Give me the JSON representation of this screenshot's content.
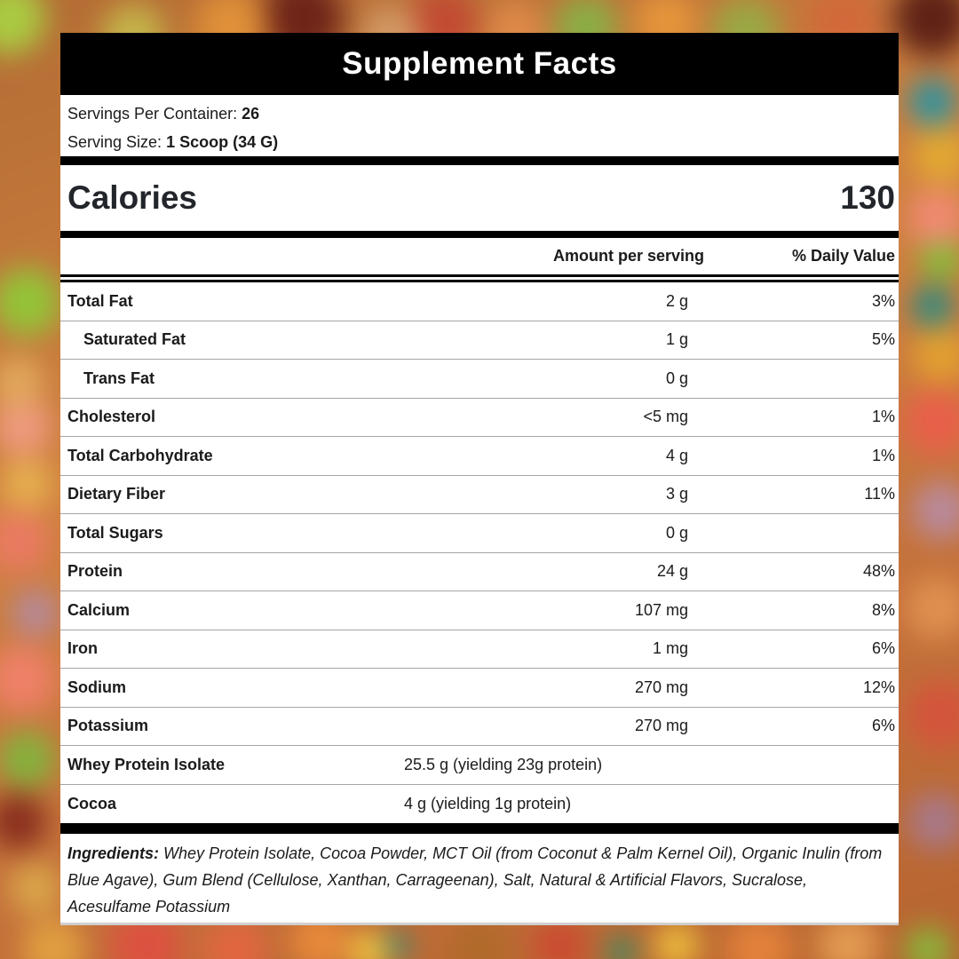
{
  "label": {
    "title": "Supplement Facts",
    "servings_per_container": {
      "label": "Servings Per Container: ",
      "value": "26"
    },
    "serving_size": {
      "label": "Serving Size: ",
      "value": "1 Scoop (34 G)"
    },
    "calories": {
      "label": "Calories",
      "value": "130"
    },
    "columns": {
      "amount": "Amount per serving",
      "daily_value": "% Daily Value"
    },
    "rows": [
      {
        "name": "Total Fat",
        "amount": "2 g",
        "dv": "3%",
        "indent": false,
        "long": false
      },
      {
        "name": "Saturated Fat",
        "amount": "1 g",
        "dv": "5%",
        "indent": true,
        "long": false
      },
      {
        "name": "Trans Fat",
        "amount": "0 g",
        "dv": "",
        "indent": true,
        "long": false
      },
      {
        "name": "Cholesterol",
        "amount": "<5 mg",
        "dv": "1%",
        "indent": false,
        "long": false
      },
      {
        "name": "Total Carbohydrate",
        "amount": "4 g",
        "dv": "1%",
        "indent": false,
        "long": false
      },
      {
        "name": "Dietary Fiber",
        "amount": "3 g",
        "dv": "11%",
        "indent": false,
        "long": false
      },
      {
        "name": "Total Sugars",
        "amount": "0 g",
        "dv": "",
        "indent": false,
        "long": false
      },
      {
        "name": "Protein",
        "amount": "24 g",
        "dv": "48%",
        "indent": false,
        "long": false
      },
      {
        "name": "Calcium",
        "amount": "107 mg",
        "dv": "8%",
        "indent": false,
        "long": false
      },
      {
        "name": "Iron",
        "amount": "1 mg",
        "dv": "6%",
        "indent": false,
        "long": false
      },
      {
        "name": "Sodium",
        "amount": "270 mg",
        "dv": "12%",
        "indent": false,
        "long": false
      },
      {
        "name": "Potassium",
        "amount": "270 mg",
        "dv": "6%",
        "indent": false,
        "long": false
      },
      {
        "name": "Whey Protein Isolate",
        "amount": "25.5 g (yielding 23g protein)",
        "dv": "",
        "indent": false,
        "long": true
      },
      {
        "name": "Cocoa",
        "amount": "4 g (yielding 1g protein)",
        "dv": "",
        "indent": false,
        "long": true
      }
    ],
    "ingredients": {
      "label": "Ingredients:",
      "text": " Whey Protein Isolate, Cocoa Powder, MCT Oil (from Coconut & Palm Kernel Oil), Organic Inulin (from Blue Agave), Gum Blend (Cellulose, Xanthan, Carrageenan), Salt, Natural & Artificial Flavors, Sucralose, Acesulfame Potassium"
    }
  },
  "colors": {
    "panel_bg": "#ffffff",
    "bar": "#000000",
    "title_text": "#ffffff",
    "body_text": "#1b1b1b",
    "separator": "#a5a5a5"
  }
}
